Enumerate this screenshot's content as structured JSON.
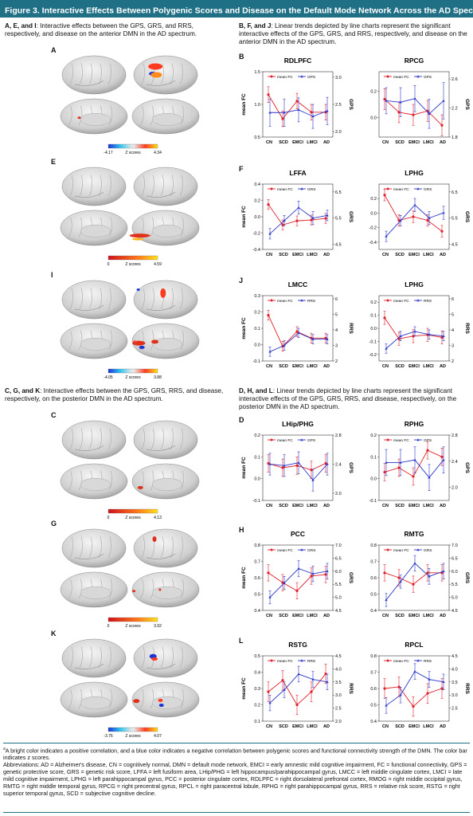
{
  "title": "Figure 3. Interactive Effects Between Polygenic Scores and Disease on the Default Mode Network Across the AD Spectrum",
  "title_sup": "a",
  "left_top_lead": {
    "bold": "A, E, and I",
    "text": ": Interactive effects between the GPS, GRS, and RRS, respectively, and disease on the anterior DMN in the AD spectrum."
  },
  "right_top_lead": {
    "bold": "B, F, and J",
    "text": ": Linear trends depicted by line charts represent the significant interactive effects of the GPS, GRS, and RRS, respectively, and disease on the anterior DMN in the AD spectrum."
  },
  "left_bottom_lead": {
    "bold": "C, G, and K",
    "text": ": Interactive effects between the GPS, GRS, RRS, and disease, respectively, on the posterior DMN in the AD spectrum."
  },
  "right_bottom_lead": {
    "bold": "D, H, and L",
    "text": ": Linear trends depicted by line charts represent the significant interactive effects of the GPS, GRS, RRS, and disease, respectively, on the posterior DMN in the AD spectrum."
  },
  "brain_panels": [
    {
      "letter": "A",
      "colorbar": {
        "min": "-4.17",
        "label": "Z scores",
        "max": "4.34",
        "scale": "blue-red"
      }
    },
    {
      "letter": "E",
      "colorbar": {
        "min": "0",
        "label": "Z scores",
        "max": "4.59",
        "scale": "red-yellow"
      }
    },
    {
      "letter": "I",
      "colorbar": {
        "min": "-4.05",
        "label": "Z scores",
        "max": "3.88",
        "scale": "blue-red"
      }
    },
    {
      "letter": "C",
      "colorbar": {
        "min": "0",
        "label": "Z scores",
        "max": "4.13",
        "scale": "red-yellow"
      }
    },
    {
      "letter": "G",
      "colorbar": {
        "min": "0",
        "label": "Z scores",
        "max": "3.92",
        "scale": "red-yellow"
      }
    },
    {
      "letter": "K",
      "colorbar": {
        "min": "-3.76",
        "label": "Z scores",
        "max": "4.07",
        "scale": "blue-red"
      }
    }
  ],
  "chart_panels": [
    "B",
    "F",
    "J",
    "D",
    "H",
    "L"
  ],
  "colors": {
    "banner": "#1f6f85",
    "fc": "#e0202a",
    "score": "#2a36c8"
  },
  "chart_data": [
    {
      "panel": "B",
      "type": "line",
      "title": "RDLPFC",
      "categories": [
        "CN",
        "SCD",
        "EMCI",
        "LMCI",
        "AD"
      ],
      "ylabel": "mean FC",
      "y2label": "GPS",
      "ylim": [
        0.5,
        1.5
      ],
      "yticks": [
        "0.5",
        "1.0",
        "1.5"
      ],
      "y2lim": [
        1.9,
        3.1
      ],
      "y2ticks": [
        "2.0",
        "2.5",
        "3.0"
      ],
      "series": [
        {
          "name": "mean FC",
          "axis": "left",
          "values": [
            1.15,
            0.78,
            1.05,
            0.88,
            0.88
          ],
          "err": [
            0.12,
            0.12,
            0.12,
            0.12,
            0.12
          ]
        },
        {
          "name": "GPS",
          "axis": "right",
          "values": [
            2.35,
            2.35,
            2.4,
            2.28,
            2.38
          ],
          "err": [
            0.25,
            0.25,
            0.22,
            0.22,
            0.25
          ]
        }
      ]
    },
    {
      "panel": "B2",
      "type": "line",
      "title": "RPCG",
      "categories": [
        "CN",
        "SCD",
        "EMCI",
        "LMCI",
        "AD"
      ],
      "ylabel": "",
      "y2label": "GPS",
      "ylim": [
        -0.15,
        0.35
      ],
      "yticks": [
        "0.0",
        "0.2"
      ],
      "y2lim": [
        1.8,
        2.7
      ],
      "y2ticks": [
        "1.8",
        "2.2",
        "2.6"
      ],
      "series": [
        {
          "name": "mean FC",
          "axis": "left",
          "values": [
            0.14,
            0.04,
            0.02,
            0.05,
            -0.06
          ],
          "err": [
            0.08,
            0.08,
            0.08,
            0.08,
            0.08
          ]
        },
        {
          "name": "GPS",
          "axis": "right",
          "values": [
            2.3,
            2.28,
            2.33,
            2.12,
            2.3
          ],
          "err": [
            0.18,
            0.2,
            0.18,
            0.2,
            0.25
          ]
        }
      ]
    },
    {
      "panel": "F",
      "type": "line",
      "title": "LFFA",
      "categories": [
        "CN",
        "SCD",
        "EMCI",
        "LMCI",
        "AD"
      ],
      "ylabel": "mean FC",
      "y2label": "GRS",
      "ylim": [
        -0.4,
        0.4
      ],
      "yticks": [
        "-0.4",
        "-0.2",
        "0.0",
        "0.2",
        "0.4"
      ],
      "y2lim": [
        4.3,
        6.8
      ],
      "y2ticks": [
        "4.5",
        "5.5",
        "6.5"
      ],
      "series": [
        {
          "name": "mean FC",
          "axis": "left",
          "values": [
            0.15,
            -0.1,
            -0.05,
            -0.04,
            -0.02
          ],
          "err": [
            0.06,
            0.06,
            0.06,
            0.06,
            0.06
          ]
        },
        {
          "name": "GRS",
          "axis": "right",
          "values": [
            4.9,
            5.4,
            5.9,
            5.5,
            5.6
          ],
          "err": [
            0.2,
            0.2,
            0.25,
            0.25,
            0.2
          ]
        }
      ]
    },
    {
      "panel": "F2",
      "type": "line",
      "title": "LPHG",
      "categories": [
        "CN",
        "SCD",
        "EMCI",
        "LMCI",
        "AD"
      ],
      "ylabel": "",
      "y2label": "GRS",
      "ylim": [
        -0.5,
        0.4
      ],
      "yticks": [
        "-0.4",
        "-0.2",
        "0.0",
        "0.2"
      ],
      "y2lim": [
        4.3,
        6.8
      ],
      "y2ticks": [
        "4.5",
        "5.5",
        "6.5"
      ],
      "series": [
        {
          "name": "mean FC",
          "axis": "left",
          "values": [
            0.25,
            -0.1,
            -0.05,
            -0.1,
            -0.25
          ],
          "err": [
            0.08,
            0.08,
            0.08,
            0.08,
            0.08
          ]
        },
        {
          "name": "GRS",
          "axis": "right",
          "values": [
            4.8,
            5.4,
            6.0,
            5.5,
            5.7
          ],
          "err": [
            0.2,
            0.2,
            0.25,
            0.25,
            0.25
          ]
        }
      ]
    },
    {
      "panel": "J",
      "type": "line",
      "title": "LMCC",
      "categories": [
        "CN",
        "SCD",
        "EMCI",
        "LMCI",
        "AD"
      ],
      "ylabel": "mean FC",
      "y2label": "RRS",
      "ylim": [
        -0.1,
        0.3
      ],
      "yticks": [
        "-0.1",
        "0.0",
        "0.1",
        "0.2",
        "0.3"
      ],
      "y2lim": [
        2,
        6.2
      ],
      "y2ticks": [
        "2",
        "3",
        "4",
        "5",
        "6"
      ],
      "series": [
        {
          "name": "mean FC",
          "axis": "left",
          "values": [
            0.18,
            -0.01,
            0.08,
            0.04,
            0.04
          ],
          "err": [
            0.03,
            0.03,
            0.03,
            0.03,
            0.03
          ]
        },
        {
          "name": "RRS",
          "axis": "right",
          "values": [
            2.6,
            3.0,
            3.8,
            3.4,
            3.4
          ],
          "err": [
            0.3,
            0.3,
            0.3,
            0.3,
            0.3
          ]
        }
      ]
    },
    {
      "panel": "J2",
      "type": "line",
      "title": "LPHG",
      "categories": [
        "CN",
        "SCD",
        "EMCI",
        "LMCI",
        "AD"
      ],
      "ylabel": "",
      "y2label": "RRS",
      "ylim": [
        -0.25,
        0.25
      ],
      "yticks": [
        "-0.2",
        "-0.1",
        "0.0",
        "0.1",
        "0.2"
      ],
      "y2lim": [
        2,
        6.2
      ],
      "y2ticks": [
        "2",
        "3",
        "4",
        "5",
        "6"
      ],
      "series": [
        {
          "name": "mean FC",
          "axis": "left",
          "values": [
            0.08,
            -0.08,
            -0.06,
            -0.05,
            -0.07
          ],
          "err": [
            0.05,
            0.05,
            0.05,
            0.05,
            0.05
          ]
        },
        {
          "name": "RRS",
          "axis": "right",
          "values": [
            2.8,
            3.6,
            3.9,
            3.7,
            3.6
          ],
          "err": [
            0.3,
            0.3,
            0.3,
            0.3,
            0.3
          ]
        }
      ]
    },
    {
      "panel": "D",
      "type": "line",
      "title": "LHip/PHG",
      "categories": [
        "CN",
        "SCD",
        "EMCI",
        "LMCI",
        "AD"
      ],
      "ylabel": "mean FC",
      "y2label": "GPS",
      "ylim": [
        -0.1,
        0.2
      ],
      "yticks": [
        "-0.1",
        "0.0",
        "0.1",
        "0.2"
      ],
      "y2lim": [
        1.9,
        2.8
      ],
      "y2ticks": [
        "2.0",
        "2.4",
        "2.8"
      ],
      "series": [
        {
          "name": "mean FC",
          "axis": "left",
          "values": [
            0.07,
            0.05,
            0.06,
            0.04,
            0.07
          ],
          "err": [
            0.04,
            0.04,
            0.04,
            0.04,
            0.04
          ]
        },
        {
          "name": "GPS",
          "axis": "right",
          "values": [
            2.4,
            2.38,
            2.42,
            2.18,
            2.4
          ],
          "err": [
            0.15,
            0.15,
            0.15,
            0.15,
            0.15
          ]
        }
      ]
    },
    {
      "panel": "D2",
      "type": "line",
      "title": "RPHG",
      "categories": [
        "CN",
        "SCD",
        "EMCI",
        "LMCI",
        "AD"
      ],
      "ylabel": "",
      "y2label": "GPS",
      "ylim": [
        -0.1,
        0.2
      ],
      "yticks": [
        "-0.1",
        "0.0",
        "0.1",
        "0.2"
      ],
      "y2lim": [
        1.8,
        2.8
      ],
      "y2ticks": [
        "2.0",
        "2.4",
        "2.8"
      ],
      "series": [
        {
          "name": "mean FC",
          "axis": "left",
          "values": [
            0.03,
            0.05,
            0.01,
            0.13,
            0.1
          ],
          "err": [
            0.04,
            0.04,
            0.04,
            0.04,
            0.04
          ]
        },
        {
          "name": "GPS",
          "axis": "right",
          "values": [
            2.38,
            2.38,
            2.42,
            2.15,
            2.42
          ],
          "err": [
            0.2,
            0.2,
            0.2,
            0.2,
            0.2
          ]
        }
      ]
    },
    {
      "panel": "H",
      "type": "line",
      "title": "PCC",
      "categories": [
        "CN",
        "SCD",
        "EMCI",
        "LMCI",
        "AD"
      ],
      "ylabel": "mean FC",
      "y2label": "GRS",
      "ylim": [
        0.4,
        0.8
      ],
      "yticks": [
        "0.4",
        "0.5",
        "0.6",
        "0.7",
        "0.8"
      ],
      "y2lim": [
        4.5,
        7.0
      ],
      "y2ticks": [
        "4.5",
        "5.0",
        "5.5",
        "6.0",
        "6.5",
        "7.0"
      ],
      "series": [
        {
          "name": "mean FC",
          "axis": "left",
          "values": [
            0.63,
            0.57,
            0.52,
            0.61,
            0.62
          ],
          "err": [
            0.05,
            0.05,
            0.05,
            0.05,
            0.05
          ]
        },
        {
          "name": "GRS",
          "axis": "right",
          "values": [
            5.0,
            5.55,
            6.1,
            5.9,
            6.0
          ],
          "err": [
            0.25,
            0.25,
            0.3,
            0.3,
            0.3
          ]
        }
      ]
    },
    {
      "panel": "H2",
      "type": "line",
      "title": "RMTG",
      "categories": [
        "CN",
        "SCD",
        "EMCI",
        "LMCI",
        "AD"
      ],
      "ylabel": "",
      "y2label": "GRS",
      "ylim": [
        0.4,
        0.8
      ],
      "yticks": [
        "0.4",
        "0.5",
        "0.6",
        "0.7",
        "0.8"
      ],
      "y2lim": [
        4.5,
        7.0
      ],
      "y2ticks": [
        "4.5",
        "5.0",
        "5.5",
        "6.0",
        "6.5",
        "7.0"
      ],
      "series": [
        {
          "name": "mean FC",
          "axis": "left",
          "values": [
            0.63,
            0.6,
            0.56,
            0.63,
            0.63
          ],
          "err": [
            0.05,
            0.05,
            0.05,
            0.05,
            0.05
          ]
        },
        {
          "name": "GRS",
          "axis": "right",
          "values": [
            4.9,
            5.6,
            6.3,
            5.8,
            6.0
          ],
          "err": [
            0.25,
            0.25,
            0.3,
            0.3,
            0.3
          ]
        }
      ]
    },
    {
      "panel": "L",
      "type": "line",
      "title": "RSTG",
      "categories": [
        "CN",
        "SCD",
        "EMCI",
        "LMCI",
        "AD"
      ],
      "ylabel": "mean FC",
      "y2label": "RRS",
      "ylim": [
        0.1,
        0.5
      ],
      "yticks": [
        "0.1",
        "0.2",
        "0.3",
        "0.4",
        "0.5"
      ],
      "y2lim": [
        2.0,
        4.5
      ],
      "y2ticks": [
        "2.0",
        "2.5",
        "3.0",
        "3.5",
        "4.0",
        "4.5"
      ],
      "series": [
        {
          "name": "mean FC",
          "axis": "left",
          "values": [
            0.28,
            0.35,
            0.2,
            0.28,
            0.39
          ],
          "err": [
            0.06,
            0.06,
            0.06,
            0.06,
            0.06
          ]
        },
        {
          "name": "RRS",
          "axis": "right",
          "values": [
            2.7,
            3.2,
            3.8,
            3.6,
            3.5
          ],
          "err": [
            0.3,
            0.3,
            0.3,
            0.3,
            0.3
          ]
        }
      ]
    },
    {
      "panel": "L2",
      "type": "line",
      "title": "RPCL",
      "categories": [
        "CN",
        "SCD",
        "EMCI",
        "LMCI",
        "AD"
      ],
      "ylabel": "",
      "y2label": "RRS",
      "ylim": [
        0.4,
        0.8
      ],
      "yticks": [
        "0.4",
        "0.5",
        "0.6",
        "0.7",
        "0.8"
      ],
      "y2lim": [
        2.0,
        4.5
      ],
      "y2ticks": [
        "2.5",
        "3.0",
        "3.5",
        "4.0",
        "4.5"
      ],
      "series": [
        {
          "name": "mean FC",
          "axis": "left",
          "values": [
            0.6,
            0.61,
            0.49,
            0.57,
            0.6
          ],
          "err": [
            0.06,
            0.06,
            0.06,
            0.06,
            0.06
          ]
        },
        {
          "name": "RRS",
          "axis": "right",
          "values": [
            2.6,
            3.0,
            3.9,
            3.6,
            3.5
          ],
          "err": [
            0.3,
            0.3,
            0.3,
            0.3,
            0.3
          ]
        }
      ]
    }
  ],
  "footnote_a": "A bright color indicates a positive correlation, and a blue color indicates a negative correlation between polygenic scores and functional connectivity strength of the DMN. The color bar indicates z scores.",
  "abbreviations": "Abbreviations: AD = Alzheimer's disease, CN = cognitively normal, DMN = default mode network, EMCI = early amnestic mild cognitive impairment, FC = functional connectivity, GPS = genetic protective score, GRS = genetic risk score, LFFA = left fusiform area, LHip/PHG = left hippocampus/parahippocampal gyrus, LMCC = left middle cingulate cortex, LMCI = late mild cognitive impairment, LPHG = left parahippocampal gyrus, PCC = posterior cingulate cortex, RDLPFC = right dorsolateral prefrontal cortex, RMOG = right middle occipital gyrus, RMTG = right middle temporal gyrus, RPCG = right precentral gyrus, RPCL = right paracentral lobule, RPHG = right parahippocampal gyrus, RRS = relative risk score, RSTG = right superior temporal gyrus, SCD = subjective cognitive decline."
}
